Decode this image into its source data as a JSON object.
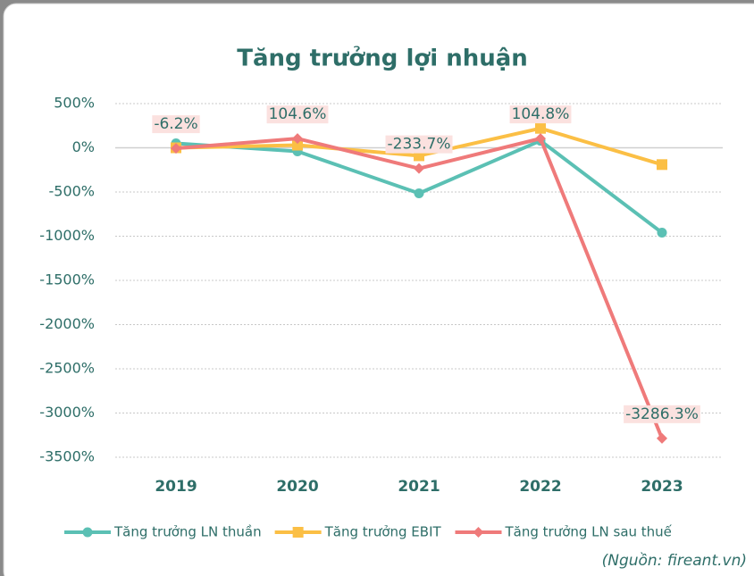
{
  "chart_data": {
    "type": "line",
    "title": "Tăng trưởng lợi nhuận",
    "categories": [
      "2019",
      "2020",
      "2021",
      "2022",
      "2023"
    ],
    "series": [
      {
        "name": "Tăng trưởng LN thuần",
        "color": "#5bc0b4",
        "marker": "circle",
        "values": [
          50,
          -40,
          -515,
          80,
          -960
        ]
      },
      {
        "name": "Tăng trưởng EBIT",
        "color": "#fbbf45",
        "marker": "square",
        "values": [
          0,
          30,
          -90,
          220,
          -190
        ]
      },
      {
        "name": "Tăng trưởng LN sau thuế",
        "color": "#ef7a7a",
        "marker": "diamond",
        "values": [
          -6.2,
          104.6,
          -233.7,
          104.8,
          -3286.3
        ],
        "value_labels": [
          "-6.2%",
          "104.6%",
          "-233.7%",
          "104.8%",
          "-3286.3%"
        ]
      }
    ],
    "ylim": [
      -3500,
      500
    ],
    "yticks": [
      {
        "value": 500,
        "label": "500%"
      },
      {
        "value": 0,
        "label": "0%"
      },
      {
        "value": -500,
        "label": "-500%"
      },
      {
        "value": -1000,
        "label": "-1000%"
      },
      {
        "value": -1500,
        "label": "-1500%"
      },
      {
        "value": -2000,
        "label": "-2000%"
      },
      {
        "value": -2500,
        "label": "-2500%"
      },
      {
        "value": -3000,
        "label": "-3000%"
      },
      {
        "value": -3500,
        "label": "-3500%"
      }
    ],
    "grid": true,
    "legend": "bottom",
    "source": "(Nguồn: fireant.vn)"
  }
}
